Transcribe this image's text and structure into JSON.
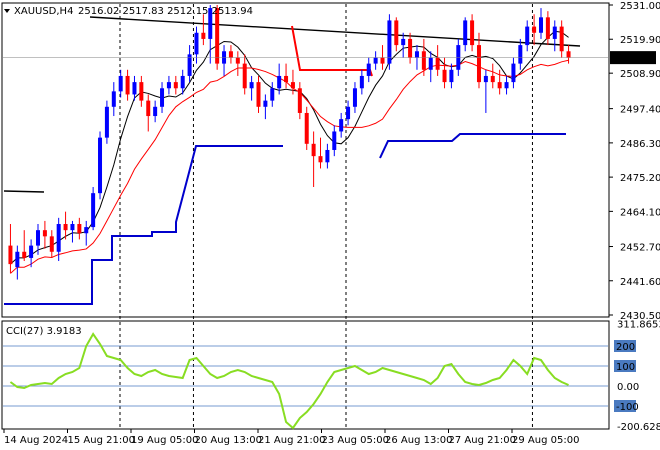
{
  "window": {
    "symbol_label": "XAUUSD,H4",
    "ohlc_text": "2516.02 2517.83 2512.15 2513.94"
  },
  "indicator": {
    "label": "CCI(27) 3.9183"
  },
  "price_badge": "2513.94",
  "colors": {
    "bull": "#0000ff",
    "bear": "#ff0000",
    "ma_fast": "#000000",
    "ma_slow": "#ff0000",
    "trend_line": "#000000",
    "support_line": "#0000cc",
    "cci_line": "#88dd22",
    "cci_levels": "#4a7ac0",
    "price_badge_bg": "#000000",
    "price_badge_text": "#ffffff"
  },
  "chart_data": [
    {
      "type": "candlestick",
      "title": "",
      "price_axis_labels": [
        "2531.00",
        "2519.90",
        "2508.90",
        "2497.40",
        "2486.30",
        "2475.20",
        "2464.10",
        "2452.70",
        "2441.60",
        "2430.50"
      ],
      "time_axis_labels": [
        "14 Aug 2024",
        "15 Aug 21:00",
        "19 Aug 05:00",
        "20 Aug 13:00",
        "21 Aug 21:00",
        "23 Aug 05:00",
        "26 Aug 13:00",
        "27 Aug 21:00",
        "29 Aug 05:00"
      ],
      "ylim": [
        2430.5,
        2531.0
      ],
      "candles": [
        [
          2453,
          2460,
          2444,
          2447
        ],
        [
          2446,
          2453,
          2442,
          2451
        ],
        [
          2451,
          2458,
          2448,
          2449
        ],
        [
          2449,
          2455,
          2446,
          2453
        ],
        [
          2453,
          2460,
          2450,
          2458
        ],
        [
          2458,
          2461,
          2452,
          2456
        ],
        [
          2456,
          2458,
          2449,
          2451
        ],
        [
          2451,
          2462,
          2448,
          2460
        ],
        [
          2460,
          2464,
          2455,
          2458
        ],
        [
          2458,
          2461,
          2454,
          2460
        ],
        [
          2460,
          2462,
          2455,
          2457
        ],
        [
          2457,
          2461,
          2453,
          2459
        ],
        [
          2459,
          2472,
          2458,
          2470
        ],
        [
          2470,
          2490,
          2468,
          2488
        ],
        [
          2488,
          2500,
          2486,
          2498
        ],
        [
          2498,
          2506,
          2495,
          2503
        ],
        [
          2503,
          2510,
          2501,
          2508
        ],
        [
          2508,
          2510,
          2500,
          2502
        ],
        [
          2502,
          2508,
          2500,
          2506
        ],
        [
          2506,
          2508,
          2498,
          2500
        ],
        [
          2500,
          2502,
          2490,
          2495
        ],
        [
          2495,
          2500,
          2493,
          2498
        ],
        [
          2498,
          2506,
          2496,
          2504
        ],
        [
          2504,
          2508,
          2502,
          2506
        ],
        [
          2506,
          2508,
          2502,
          2504
        ],
        [
          2504,
          2510,
          2502,
          2508
        ],
        [
          2508,
          2518,
          2506,
          2515
        ],
        [
          2515,
          2524,
          2512,
          2522
        ],
        [
          2522,
          2528,
          2518,
          2520
        ],
        [
          2520,
          2531,
          2512,
          2530
        ],
        [
          2530,
          2531,
          2510,
          2512
        ],
        [
          2512,
          2518,
          2508,
          2516
        ],
        [
          2516,
          2518,
          2512,
          2514
        ],
        [
          2514,
          2516,
          2508,
          2512
        ],
        [
          2512,
          2515,
          2502,
          2504
        ],
        [
          2504,
          2508,
          2500,
          2506
        ],
        [
          2506,
          2508,
          2496,
          2498
        ],
        [
          2498,
          2502,
          2494,
          2500
        ],
        [
          2500,
          2506,
          2498,
          2504
        ],
        [
          2504,
          2512,
          2502,
          2508
        ],
        [
          2508,
          2512,
          2504,
          2506
        ],
        [
          2506,
          2510,
          2502,
          2504
        ],
        [
          2504,
          2506,
          2494,
          2496
        ],
        [
          2496,
          2498,
          2484,
          2486
        ],
        [
          2486,
          2490,
          2472,
          2482
        ],
        [
          2482,
          2488,
          2478,
          2480
        ],
        [
          2480,
          2486,
          2478,
          2484
        ],
        [
          2484,
          2492,
          2482,
          2490
        ],
        [
          2490,
          2496,
          2488,
          2494
        ],
        [
          2494,
          2500,
          2492,
          2498
        ],
        [
          2498,
          2506,
          2496,
          2504
        ],
        [
          2504,
          2510,
          2502,
          2508
        ],
        [
          2508,
          2514,
          2506,
          2512
        ],
        [
          2512,
          2516,
          2510,
          2514
        ],
        [
          2514,
          2518,
          2510,
          2512
        ],
        [
          2512,
          2528,
          2510,
          2526
        ],
        [
          2526,
          2527,
          2516,
          2518
        ],
        [
          2518,
          2522,
          2514,
          2520
        ],
        [
          2520,
          2522,
          2512,
          2514
        ],
        [
          2514,
          2518,
          2510,
          2516
        ],
        [
          2516,
          2520,
          2508,
          2510
        ],
        [
          2510,
          2516,
          2506,
          2514
        ],
        [
          2514,
          2518,
          2508,
          2510
        ],
        [
          2510,
          2514,
          2504,
          2506
        ],
        [
          2506,
          2512,
          2504,
          2510
        ],
        [
          2510,
          2520,
          2508,
          2518
        ],
        [
          2518,
          2527,
          2516,
          2526
        ],
        [
          2526,
          2528,
          2516,
          2518
        ],
        [
          2518,
          2522,
          2504,
          2506
        ],
        [
          2506,
          2510,
          2496,
          2508
        ],
        [
          2508,
          2512,
          2504,
          2506
        ],
        [
          2506,
          2510,
          2502,
          2504
        ],
        [
          2504,
          2508,
          2502,
          2506
        ],
        [
          2506,
          2514,
          2504,
          2512
        ],
        [
          2512,
          2520,
          2510,
          2518
        ],
        [
          2518,
          2526,
          2516,
          2524
        ],
        [
          2524,
          2528,
          2518,
          2522
        ],
        [
          2522,
          2530,
          2520,
          2527
        ],
        [
          2527,
          2529,
          2518,
          2520
        ],
        [
          2520,
          2526,
          2516,
          2524
        ],
        [
          2524,
          2526,
          2514,
          2516
        ],
        [
          2516,
          2518,
          2512,
          2514
        ]
      ]
    },
    {
      "type": "line",
      "title": "",
      "yticks": [
        311.8653,
        200,
        100,
        0.0,
        -100,
        -200.6281
      ],
      "ytick_labels": [
        "311.8653",
        "200",
        "100",
        "0.00",
        "-100",
        "-200.6281"
      ],
      "ylim": [
        -210,
        320
      ],
      "series": [
        {
          "values": [
            20,
            -5,
            -10,
            5,
            10,
            15,
            10,
            40,
            60,
            70,
            90,
            200,
            260,
            210,
            150,
            140,
            130,
            90,
            60,
            50,
            70,
            80,
            60,
            50,
            45,
            40,
            130,
            140,
            100,
            60,
            40,
            50,
            70,
            80,
            70,
            50,
            40,
            30,
            20,
            -40,
            -180,
            -210,
            -160,
            -130,
            -90,
            -40,
            20,
            70,
            80,
            90,
            100,
            80,
            60,
            70,
            90,
            80,
            70,
            60,
            50,
            40,
            30,
            10,
            40,
            100,
            110,
            60,
            20,
            10,
            5,
            15,
            30,
            40,
            80,
            130,
            100,
            60,
            140,
            130,
            80,
            40,
            20,
            5
          ]
        }
      ]
    }
  ]
}
